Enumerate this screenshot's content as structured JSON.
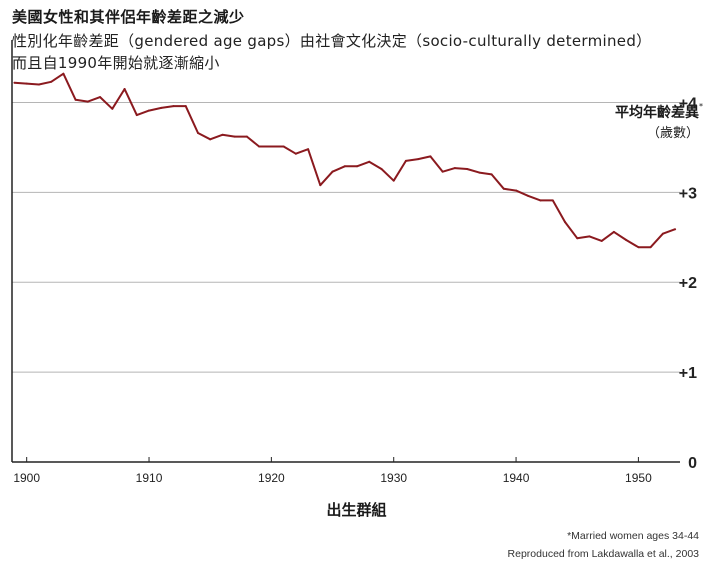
{
  "header": {
    "title": "美國女性和其伴侶年齡差距之減少",
    "subtitle_line1": "性別化年齡差距（gendered age gaps）由社會文化決定（socio-culturally determined）",
    "subtitle_line2": "而且自1990年開始就逐漸縮小"
  },
  "footnotes": {
    "line1": "*Married women ages 34-44",
    "line2": "Reproduced from Lakdawalla et al., 2003"
  },
  "colors": {
    "line": "#8b1a1f",
    "grid": "#b5b5b5",
    "axis": "#222222"
  },
  "chart_data": {
    "type": "line",
    "title": "美國女性和其伴侶年齡差距之減少",
    "ylabel": "平均年齡差異",
    "ylabel_marker": "*",
    "yunit": "（歲數）",
    "xlabel": "出生群組",
    "xlim": [
      1898.8,
      1953.4
    ],
    "ylim": [
      0,
      4.25
    ],
    "xticks": [
      1900,
      1910,
      1920,
      1930,
      1940,
      1950
    ],
    "yticks": [
      0,
      1,
      2,
      3,
      4
    ],
    "ytick_labels": [
      "0",
      "+1",
      "+2",
      "+3",
      "+4"
    ],
    "grid": true,
    "series": [
      {
        "x": [
          1899,
          1900,
          1901,
          1902,
          1903,
          1904,
          1905,
          1906,
          1907,
          1908,
          1909,
          1910,
          1911,
          1912,
          1913,
          1914,
          1915,
          1916,
          1917,
          1918,
          1919,
          1920,
          1921,
          1922,
          1923,
          1924,
          1925,
          1926,
          1927,
          1928,
          1929,
          1930,
          1931,
          1932,
          1933,
          1934,
          1935,
          1936,
          1937,
          1938,
          1939,
          1940,
          1941,
          1942,
          1943,
          1944,
          1945,
          1946,
          1947,
          1948,
          1949,
          1950,
          1951,
          1952,
          1953
        ],
        "y": [
          4.22,
          4.21,
          4.2,
          4.23,
          4.32,
          4.03,
          4.01,
          4.06,
          3.93,
          4.15,
          3.86,
          3.91,
          3.94,
          3.96,
          3.96,
          3.66,
          3.59,
          3.64,
          3.62,
          3.62,
          3.51,
          3.51,
          3.51,
          3.43,
          3.48,
          3.08,
          3.23,
          3.29,
          3.29,
          3.34,
          3.26,
          3.13,
          3.35,
          3.37,
          3.4,
          3.23,
          3.27,
          3.26,
          3.22,
          3.2,
          3.04,
          3.02,
          2.96,
          2.91,
          2.91,
          2.67,
          2.49,
          2.51,
          2.46,
          2.56,
          2.47,
          2.39,
          2.39,
          2.54,
          2.59
        ]
      }
    ]
  }
}
